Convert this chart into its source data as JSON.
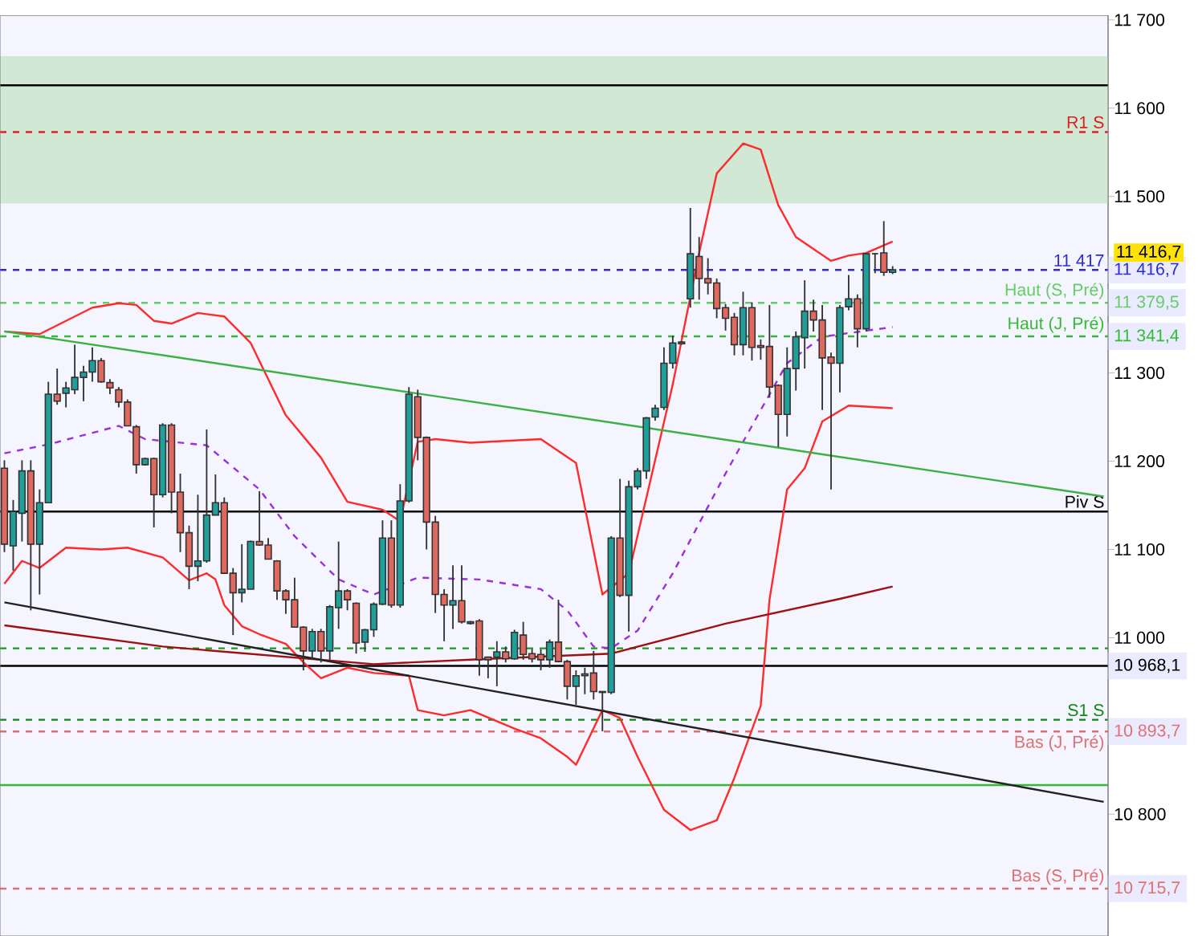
{
  "chart_data": {
    "type": "candlestick",
    "categories": [
      null,
      null,
      null,
      null,
      null,
      null,
      null,
      null,
      null,
      null,
      null,
      null,
      null,
      null,
      null,
      null,
      null,
      null,
      null,
      null,
      null,
      null,
      null,
      null,
      null,
      null,
      null,
      null,
      null,
      null,
      null,
      null,
      null,
      null,
      null,
      null,
      null,
      null,
      null,
      null,
      null,
      null,
      null,
      null,
      null,
      null,
      null,
      null,
      null,
      null,
      null,
      null,
      null,
      null,
      null,
      null,
      null,
      null,
      null,
      null,
      null,
      null,
      null,
      null,
      null,
      null,
      null,
      null,
      null,
      null,
      null,
      null,
      null,
      null,
      null,
      null,
      null,
      null,
      null,
      null,
      null,
      null,
      null,
      null,
      null,
      null,
      null,
      null,
      null,
      null,
      null,
      null,
      null,
      null,
      null,
      null,
      null,
      null,
      null,
      null,
      null,
      null,
      null,
      null,
      null,
      null,
      null,
      null,
      null,
      null,
      null,
      null,
      null,
      null,
      null,
      null,
      null,
      null,
      null,
      null,
      null,
      null,
      null,
      null,
      null,
      null
    ],
    "ohlc": [
      [
        11192,
        11201,
        11097,
        11106
      ],
      [
        11104,
        11156,
        11076,
        11143
      ],
      [
        11141,
        11201,
        11109,
        11189
      ],
      [
        11189,
        11201,
        11031,
        11106
      ],
      [
        11106,
        11168,
        11049,
        11153
      ],
      [
        11153,
        11290,
        11153,
        11276
      ],
      [
        11276,
        11305,
        11264,
        11268
      ],
      [
        11277,
        11290,
        11261,
        11283
      ],
      [
        11281,
        11332,
        11276,
        11295
      ],
      [
        11295,
        11308,
        11268,
        11301
      ],
      [
        11301,
        11329,
        11290,
        11314
      ],
      [
        11314,
        11317,
        11289,
        11290
      ],
      [
        11289,
        11293,
        11276,
        11283
      ],
      [
        11281,
        11284,
        11261,
        11267
      ],
      [
        11267,
        11270,
        11240,
        11240
      ],
      [
        11239,
        11241,
        11186,
        11196
      ],
      [
        11196,
        11204,
        11195,
        11203
      ],
      [
        11203,
        11204,
        11125,
        11162
      ],
      [
        11162,
        11243,
        11159,
        11241
      ],
      [
        11241,
        11243,
        11141,
        11165
      ],
      [
        11165,
        11186,
        11097,
        11119
      ],
      [
        11119,
        11127,
        11055,
        11081
      ],
      [
        11081,
        11162,
        11064,
        11087
      ],
      [
        11087,
        11236,
        11085,
        11139
      ],
      [
        11139,
        11185,
        11139,
        11153
      ],
      [
        11153,
        11159,
        11073,
        11073
      ],
      [
        11073,
        11079,
        11003,
        11051
      ],
      [
        11051,
        11106,
        11040,
        11055
      ],
      [
        11055,
        11110,
        11055,
        11109
      ],
      [
        11109,
        11166,
        11104,
        11105
      ],
      [
        11105,
        11113,
        11089,
        11089
      ],
      [
        11087,
        11088,
        11043,
        11053
      ],
      [
        11053,
        11055,
        11027,
        11043
      ],
      [
        11043,
        11068,
        11012,
        11012
      ],
      [
        11012,
        11013,
        10963,
        10985
      ],
      [
        10985,
        11010,
        10975,
        11007
      ],
      [
        11007,
        11010,
        10972,
        10985
      ],
      [
        10985,
        11037,
        10975,
        11035
      ],
      [
        11034,
        11109,
        11010,
        11053
      ],
      [
        11053,
        11055,
        11031,
        11043
      ],
      [
        11039,
        11040,
        10982,
        10994
      ],
      [
        10995,
        11010,
        10984,
        11009
      ],
      [
        11009,
        11040,
        11001,
        11038
      ],
      [
        11038,
        11133,
        11037,
        11113
      ],
      [
        11113,
        11133,
        11034,
        11037
      ],
      [
        11037,
        11174,
        11034,
        11155
      ],
      [
        11155,
        11284,
        11153,
        11276
      ],
      [
        11273,
        11281,
        11201,
        11227
      ],
      [
        11227,
        11228,
        11100,
        11131
      ],
      [
        11131,
        11138,
        11028,
        11049
      ],
      [
        11049,
        11055,
        10996,
        11037
      ],
      [
        11037,
        11082,
        11010,
        11042
      ],
      [
        11042,
        11082,
        11016,
        11018
      ],
      [
        11016,
        11019,
        11015,
        11018
      ],
      [
        11019,
        11021,
        10957,
        10975
      ],
      [
        10978,
        10978,
        10954,
        10975
      ],
      [
        10978,
        10996,
        10945,
        10984
      ],
      [
        10984,
        10990,
        10972,
        10976
      ],
      [
        10976,
        11009,
        10975,
        11006
      ],
      [
        11003,
        11018,
        10975,
        10981
      ],
      [
        10982,
        10987,
        10972,
        10976
      ],
      [
        10981,
        10987,
        10963,
        10975
      ],
      [
        10975,
        10998,
        10966,
        10995
      ],
      [
        10995,
        11043,
        10972,
        10973
      ],
      [
        10973,
        10975,
        10930,
        10945
      ],
      [
        10945,
        10963,
        10924,
        10957
      ],
      [
        10957,
        10966,
        10936,
        10959
      ],
      [
        10960,
        10985,
        10930,
        10939
      ],
      [
        10939,
        10939,
        10894,
        10938
      ],
      [
        10938,
        11115,
        10936,
        11113
      ],
      [
        11113,
        11180,
        11046,
        11048
      ],
      [
        11048,
        11178,
        11007,
        11171
      ],
      [
        11171,
        11192,
        11168,
        11189
      ],
      [
        11189,
        11250,
        11180,
        11249
      ],
      [
        11250,
        11264,
        11246,
        11260
      ],
      [
        11261,
        11329,
        11258,
        11311
      ],
      [
        11311,
        11342,
        11305,
        11334
      ],
      [
        11333,
        11336,
        11332,
        11335
      ],
      [
        11384,
        11487,
        11374,
        11435
      ],
      [
        11432,
        11454,
        11383,
        11407
      ],
      [
        11407,
        11430,
        11389,
        11402
      ],
      [
        11402,
        11407,
        11362,
        11373
      ],
      [
        11374,
        11378,
        11348,
        11362
      ],
      [
        11363,
        11368,
        11320,
        11332
      ],
      [
        11332,
        11392,
        11320,
        11374
      ],
      [
        11374,
        11380,
        11314,
        11329
      ],
      [
        11331,
        11338,
        11315,
        11329
      ],
      [
        11330,
        11377,
        11272,
        11284
      ],
      [
        11286,
        11287,
        11216,
        11253
      ],
      [
        11253,
        11329,
        11228,
        11305
      ],
      [
        11305,
        11347,
        11280,
        11341
      ],
      [
        11340,
        11405,
        11305,
        11370
      ],
      [
        11370,
        11383,
        11347,
        11360
      ],
      [
        11360,
        11377,
        11258,
        11317
      ],
      [
        11318,
        11323,
        11168,
        11311
      ],
      [
        11311,
        11377,
        11278,
        11374
      ],
      [
        11375,
        11411,
        11371,
        11384
      ],
      [
        11384,
        11389,
        11329,
        11350
      ],
      [
        11350,
        11436,
        11347,
        11435
      ],
      [
        11435,
        11436,
        11413,
        11435
      ],
      [
        11436,
        11472,
        11410,
        11414
      ],
      [
        11414,
        11421,
        11412,
        11417
      ],
      null,
      null,
      null,
      null,
      null,
      null,
      null,
      null,
      null,
      null,
      null,
      null,
      null,
      null,
      null,
      null,
      null,
      null,
      null,
      null,
      null,
      null,
      null,
      null
    ],
    "series": [
      {
        "type": "line",
        "color": "#ff2a2a",
        "line_style": "solid",
        "values": [
          11347,
          null,
          null,
          null,
          11344,
          null,
          null,
          null,
          null,
          null,
          11374,
          null,
          null,
          11379,
          null,
          11377,
          null,
          11359,
          null,
          11356,
          null,
          null,
          11368,
          null,
          null,
          11364,
          null,
          null,
          11334,
          null,
          null,
          null,
          11252,
          null,
          null,
          null,
          11204,
          null,
          null,
          11154,
          null,
          null,
          null,
          11145,
          null,
          11132,
          null,
          11222,
          null,
          11225,
          null,
          null,
          null,
          11221,
          null,
          null,
          null,
          null,
          null,
          null,
          null,
          11225,
          null,
          null,
          null,
          11198,
          null,
          null,
          11049,
          null,
          null,
          11073,
          null,
          null,
          null,
          null,
          11287,
          null,
          null,
          11436,
          null,
          11526,
          null,
          null,
          11560,
          null,
          11553,
          null,
          11490,
          null,
          11454,
          null,
          null,
          null,
          11427,
          null,
          11433,
          null,
          11436,
          null,
          null,
          11449,
          null,
          null,
          null,
          null,
          null,
          null,
          null,
          null,
          null,
          null,
          null,
          null,
          null,
          null,
          null,
          null,
          null,
          null,
          null,
          null,
          null,
          null,
          null,
          null
        ]
      },
      {
        "type": "line",
        "color": "#ff2a2a",
        "line_style": "solid",
        "values": [
          11061,
          null,
          11087,
          null,
          11079,
          null,
          null,
          11102,
          null,
          null,
          null,
          11100,
          null,
          null,
          11102,
          null,
          null,
          null,
          11091,
          null,
          null,
          11065,
          null,
          11073,
          11066,
          11037,
          null,
          11013,
          null,
          11004,
          null,
          null,
          10993,
          null,
          10972,
          null,
          10954,
          null,
          null,
          10966,
          null,
          null,
          10960,
          null,
          null,
          null,
          10957,
          10918,
          null,
          null,
          10912,
          null,
          null,
          10918,
          null,
          null,
          null,
          null,
          10897,
          null,
          null,
          10886,
          null,
          null,
          10865,
          10856,
          null,
          null,
          10918,
          null,
          10909,
          null,
          10865,
          null,
          null,
          10805,
          null,
          null,
          10782,
          null,
          null,
          10793,
          null,
          10841,
          null,
          null,
          10923,
          11043,
          null,
          11168,
          null,
          11192,
          null,
          11245,
          null,
          null,
          11263,
          null,
          null,
          null,
          null,
          11260,
          null,
          null,
          null,
          null,
          null,
          null,
          null,
          null,
          null,
          null,
          null,
          null,
          null,
          null,
          null,
          null,
          null,
          null,
          null,
          null,
          null,
          null,
          null,
          null
        ]
      },
      {
        "type": "line",
        "color": "#9b30d9",
        "line_style": "dashed",
        "values": [
          11209,
          null,
          null,
          null,
          null,
          11219,
          null,
          null,
          null,
          null,
          null,
          null,
          null,
          11240,
          null,
          null,
          11225,
          null,
          null,
          null,
          null,
          null,
          null,
          11218,
          null,
          null,
          null,
          null,
          null,
          11168,
          null,
          null,
          null,
          11115,
          null,
          null,
          null,
          null,
          11066,
          null,
          null,
          null,
          11049,
          null,
          null,
          null,
          null,
          11068,
          null,
          null,
          null,
          null,
          null,
          null,
          11066,
          null,
          null,
          null,
          null,
          null,
          null,
          11055,
          null,
          null,
          11031,
          null,
          null,
          10990,
          null,
          10988,
          null,
          null,
          11008,
          null,
          null,
          null,
          11073,
          null,
          null,
          null,
          null,
          null,
          11186,
          null,
          null,
          null,
          11258,
          null,
          null,
          11311,
          null,
          null,
          null,
          11341,
          null,
          null,
          null,
          null,
          null,
          null,
          null,
          11352,
          null,
          null,
          null,
          null,
          null,
          null,
          null,
          null,
          null,
          null,
          null,
          null,
          null,
          null,
          null,
          null,
          null,
          null,
          null,
          null,
          null,
          null,
          null,
          null
        ]
      },
      {
        "type": "line",
        "color": "#a01010",
        "line_style": "solid",
        "values": [
          11014,
          null,
          null,
          null,
          null,
          null,
          null,
          null,
          null,
          null,
          null,
          null,
          null,
          null,
          null,
          null,
          null,
          null,
          10990,
          null,
          null,
          null,
          null,
          null,
          null,
          null,
          null,
          null,
          null,
          null,
          null,
          null,
          null,
          null,
          null,
          null,
          null,
          null,
          null,
          null,
          null,
          null,
          10970,
          null,
          null,
          null,
          null,
          null,
          null,
          null,
          null,
          null,
          null,
          null,
          null,
          10976,
          null,
          null,
          null,
          null,
          null,
          null,
          null,
          null,
          null,
          null,
          null,
          null,
          null,
          10982,
          null,
          null,
          null,
          null,
          null,
          null,
          null,
          null,
          null,
          null,
          null,
          null,
          11016,
          null,
          null,
          null,
          null,
          null,
          null,
          null,
          null,
          null,
          null,
          null,
          null,
          11044,
          null,
          null,
          null,
          null,
          null,
          11058,
          null,
          null,
          null,
          null,
          null,
          null,
          null,
          null,
          null,
          null,
          null,
          null,
          null,
          null,
          null,
          null,
          null,
          null,
          null,
          null,
          null,
          null,
          null,
          null
        ]
      },
      {
        "type": "line",
        "color": "#3cb043",
        "line_style": "solid",
        "values": [
          11347,
          null,
          null,
          null,
          null,
          null,
          null,
          null,
          null,
          null,
          null,
          null,
          null,
          null,
          null,
          null,
          null,
          null,
          null,
          null,
          null,
          null,
          null,
          null,
          null,
          null,
          null,
          null,
          null,
          null,
          null,
          null,
          null,
          null,
          null,
          null,
          null,
          null,
          null,
          null,
          null,
          null,
          null,
          null,
          null,
          null,
          null,
          null,
          null,
          null,
          null,
          null,
          null,
          null,
          null,
          null,
          null,
          null,
          null,
          null,
          null,
          null,
          null,
          null,
          null,
          null,
          null,
          null,
          null,
          null,
          null,
          null,
          null,
          null,
          null,
          null,
          null,
          null,
          null,
          null,
          null,
          null,
          null,
          null,
          null,
          null,
          null,
          null,
          null,
          null,
          null,
          null,
          null,
          null,
          null,
          null,
          null,
          null,
          null,
          null,
          null,
          null,
          null,
          null,
          null,
          null,
          null,
          null,
          null,
          null,
          null,
          null,
          null,
          null,
          null,
          null,
          null,
          null,
          null,
          null,
          null,
          null,
          null,
          null,
          null,
          11160
        ]
      },
      {
        "type": "line",
        "color": "#222222",
        "line_style": "solid",
        "values": [
          11040,
          null,
          null,
          null,
          null,
          null,
          null,
          null,
          null,
          null,
          null,
          null,
          null,
          null,
          null,
          null,
          null,
          null,
          null,
          null,
          null,
          null,
          null,
          null,
          null,
          null,
          null,
          null,
          null,
          null,
          null,
          null,
          null,
          null,
          null,
          null,
          null,
          null,
          null,
          null,
          null,
          null,
          null,
          null,
          null,
          null,
          null,
          null,
          null,
          null,
          null,
          null,
          null,
          null,
          null,
          null,
          null,
          null,
          null,
          null,
          null,
          null,
          null,
          null,
          null,
          null,
          null,
          null,
          null,
          null,
          null,
          null,
          null,
          null,
          null,
          null,
          null,
          null,
          null,
          null,
          null,
          null,
          null,
          null,
          null,
          null,
          null,
          null,
          null,
          null,
          null,
          null,
          null,
          null,
          null,
          null,
          null,
          null,
          null,
          null,
          null,
          null,
          null,
          null,
          null,
          null,
          null,
          null,
          null,
          null,
          null,
          null,
          null,
          null,
          null,
          null,
          null,
          null,
          null,
          null,
          null,
          null,
          null,
          null,
          null,
          10814
        ]
      }
    ],
    "bands": [
      {
        "axis": "y",
        "from": 11492,
        "to": 11659,
        "color": "#d0e8d4"
      }
    ],
    "ref_lines": [
      {
        "axis": "y",
        "value": 11626,
        "color": "#000000",
        "line_style": "solid"
      },
      {
        "axis": "y",
        "value": 11573,
        "label": "R1 S",
        "color": "#e02020",
        "line_style": "dashed"
      },
      {
        "axis": "y",
        "value": 11416.7,
        "label": "11 417",
        "color": "#2a2ae0",
        "line_style": "dashed"
      },
      {
        "axis": "y",
        "value": 11379.5,
        "label": "Haut (S, Pré)",
        "color": "#66cc66",
        "line_style": "dashed"
      },
      {
        "axis": "y",
        "value": 11341.4,
        "label": "Haut (J, Pré)",
        "color": "#33bb33",
        "line_style": "dashed"
      },
      {
        "axis": "y",
        "value": 11143,
        "label": "Piv S",
        "color": "#000000",
        "line_style": "solid"
      },
      {
        "axis": "y",
        "value": 10988,
        "color": "#1a9a1a",
        "line_style": "dashed"
      },
      {
        "axis": "y",
        "value": 10968.1,
        "color": "#000000",
        "line_style": "solid"
      },
      {
        "axis": "y",
        "value": 10907,
        "label": "S1 S",
        "color": "#118811",
        "line_style": "dashed"
      },
      {
        "axis": "y",
        "value": 10893.7,
        "label": "Bas (J, Pré)",
        "color": "#e07070",
        "line_style": "dashed"
      },
      {
        "axis": "y",
        "value": 10833,
        "color": "#33bb33",
        "line_style": "solid"
      },
      {
        "axis": "y",
        "value": 10715.7,
        "label": "Bas (S, Pré)",
        "color": "#e07070",
        "line_style": "dashed"
      }
    ],
    "annotations": [
      "11 416,7"
    ],
    "ylim": [
      10662,
      11705
    ],
    "yticks": [
      {
        "value": 10715.7,
        "label": "10 715,7"
      },
      {
        "value": 10800,
        "label": "10 800"
      },
      {
        "value": 10893.7,
        "label": "10 893,7"
      },
      {
        "value": 10968.1,
        "label": "10 968,1"
      },
      {
        "value": 11000,
        "label": "11 000"
      },
      {
        "value": 11100,
        "label": "11 100"
      },
      {
        "value": 11200,
        "label": "11 200"
      },
      {
        "value": 11300,
        "label": "11 300"
      },
      {
        "value": 11341.4,
        "label": "11 341,4"
      },
      {
        "value": 11379.5,
        "label": "11 379,5"
      },
      {
        "value": 11416.7,
        "label": "11 416,7"
      },
      {
        "value": 11500,
        "label": "11 500"
      },
      {
        "value": 11600,
        "label": "11 600"
      },
      {
        "value": 11700,
        "label": "11 700"
      }
    ],
    "tick_labels": "y"
  }
}
